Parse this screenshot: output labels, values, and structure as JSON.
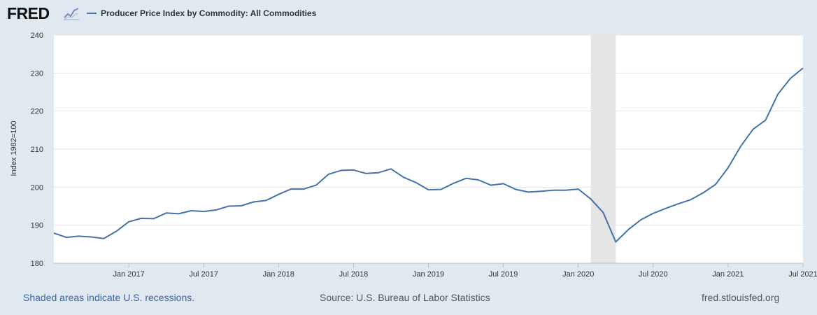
{
  "brand": {
    "logo_text": "FRED",
    "logo_icon": "line-chart-icon"
  },
  "legend": {
    "series_label": "Producer Price Index by Commodity: All Commodities",
    "color": "#4572a7"
  },
  "footer": {
    "recession_note": "Shaded areas indicate U.S. recessions.",
    "source": "Source: U.S. Bureau of Labor Statistics",
    "website": "fred.stlouisfed.org"
  },
  "chart_data": {
    "type": "line",
    "title": "",
    "xlabel": "",
    "ylabel": "Index 1982=100",
    "ylim": [
      180,
      240
    ],
    "yticks": [
      180,
      190,
      200,
      210,
      220,
      230,
      240
    ],
    "xlim": [
      "2016-07",
      "2021-07"
    ],
    "xticks": [
      {
        "date": "2017-01",
        "label": "Jan 2017"
      },
      {
        "date": "2017-07",
        "label": "Jul 2017"
      },
      {
        "date": "2018-01",
        "label": "Jan 2018"
      },
      {
        "date": "2018-07",
        "label": "Jul 2018"
      },
      {
        "date": "2019-01",
        "label": "Jan 2019"
      },
      {
        "date": "2019-07",
        "label": "Jul 2019"
      },
      {
        "date": "2020-01",
        "label": "Jan 2020"
      },
      {
        "date": "2020-07",
        "label": "Jul 2020"
      },
      {
        "date": "2021-01",
        "label": "Jan 2021"
      },
      {
        "date": "2021-07",
        "label": "Jul 2021"
      }
    ],
    "grid": true,
    "recessions": [
      {
        "start": "2020-02",
        "end": "2020-04"
      }
    ],
    "series": [
      {
        "name": "Producer Price Index by Commodity: All Commodities",
        "color": "#4572a7",
        "x": [
          "2016-07",
          "2016-08",
          "2016-09",
          "2016-10",
          "2016-11",
          "2016-12",
          "2017-01",
          "2017-02",
          "2017-03",
          "2017-04",
          "2017-05",
          "2017-06",
          "2017-07",
          "2017-08",
          "2017-09",
          "2017-10",
          "2017-11",
          "2017-12",
          "2018-01",
          "2018-02",
          "2018-03",
          "2018-04",
          "2018-05",
          "2018-06",
          "2018-07",
          "2018-08",
          "2018-09",
          "2018-10",
          "2018-11",
          "2018-12",
          "2019-01",
          "2019-02",
          "2019-03",
          "2019-04",
          "2019-05",
          "2019-06",
          "2019-07",
          "2019-08",
          "2019-09",
          "2019-10",
          "2019-11",
          "2019-12",
          "2020-01",
          "2020-02",
          "2020-03",
          "2020-04",
          "2020-05",
          "2020-06",
          "2020-07",
          "2020-08",
          "2020-09",
          "2020-10",
          "2020-11",
          "2020-12",
          "2021-01",
          "2021-02",
          "2021-03",
          "2021-04",
          "2021-05",
          "2021-06",
          "2021-07"
        ],
        "values": [
          187.9,
          186.8,
          187.1,
          186.9,
          186.5,
          188.4,
          190.9,
          191.8,
          191.7,
          193.2,
          193.0,
          193.8,
          193.6,
          194.0,
          195.0,
          195.1,
          196.1,
          196.5,
          198.1,
          199.5,
          199.5,
          200.5,
          203.4,
          204.4,
          204.5,
          203.6,
          203.8,
          204.8,
          202.6,
          201.2,
          199.3,
          199.4,
          201.0,
          202.3,
          201.9,
          200.5,
          200.9,
          199.4,
          198.7,
          198.9,
          199.2,
          199.2,
          199.5,
          196.9,
          193.3,
          185.6,
          188.8,
          191.4,
          193.1,
          194.4,
          195.6,
          196.7,
          198.5,
          200.7,
          205.1,
          210.7,
          215.2,
          217.6,
          224.5,
          228.6,
          231.3
        ]
      }
    ]
  }
}
